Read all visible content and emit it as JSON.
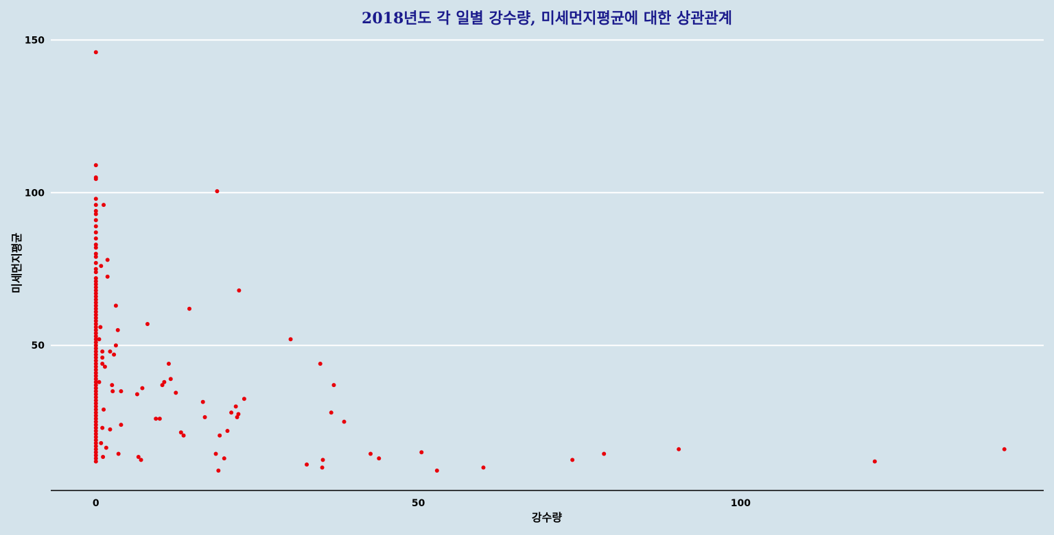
{
  "chart_data": {
    "type": "scatter",
    "title": "2018년도 각 일별 강수량, 미세먼지평균에 대한 상관관계",
    "xlabel": "강수량",
    "ylabel": "미세먼지평균",
    "xlim": [
      -7,
      147
    ],
    "ylim": [
      2.5,
      153
    ],
    "x_ticks": [
      "0",
      "50",
      "100"
    ],
    "y_ticks": [
      "50",
      "100",
      "150"
    ],
    "grid": "horizontal-major",
    "point_color": "#e8000b",
    "points": [
      [
        0,
        146
      ],
      [
        0,
        109
      ],
      [
        0,
        105
      ],
      [
        0,
        104.5
      ],
      [
        0,
        98
      ],
      [
        0,
        96
      ],
      [
        0,
        94
      ],
      [
        0,
        93
      ],
      [
        0,
        91
      ],
      [
        0,
        89
      ],
      [
        0,
        87
      ],
      [
        0,
        85
      ],
      [
        0,
        83
      ],
      [
        0,
        82
      ],
      [
        0,
        80
      ],
      [
        0,
        79
      ],
      [
        0,
        77
      ],
      [
        0,
        75
      ],
      [
        0,
        74
      ],
      [
        0,
        72
      ],
      [
        0,
        71
      ],
      [
        0,
        70
      ],
      [
        0,
        69
      ],
      [
        0,
        68
      ],
      [
        0,
        67
      ],
      [
        0,
        66
      ],
      [
        0,
        65
      ],
      [
        0,
        64
      ],
      [
        0,
        63
      ],
      [
        0,
        62
      ],
      [
        0,
        61
      ],
      [
        0,
        60
      ],
      [
        0,
        59
      ],
      [
        0,
        58
      ],
      [
        0,
        57
      ],
      [
        0,
        56
      ],
      [
        0,
        55
      ],
      [
        0,
        54
      ],
      [
        0,
        53
      ],
      [
        0,
        52
      ],
      [
        0,
        51
      ],
      [
        0,
        50
      ],
      [
        0,
        49
      ],
      [
        0,
        48
      ],
      [
        0,
        47
      ],
      [
        0,
        46
      ],
      [
        0,
        45
      ],
      [
        0,
        44
      ],
      [
        0,
        43
      ],
      [
        0,
        42
      ],
      [
        0,
        41
      ],
      [
        0,
        40
      ],
      [
        0,
        39
      ],
      [
        0,
        38
      ],
      [
        0,
        37
      ],
      [
        0,
        36
      ],
      [
        0,
        35
      ],
      [
        0,
        34
      ],
      [
        0,
        33
      ],
      [
        0,
        32
      ],
      [
        0,
        31
      ],
      [
        0,
        30
      ],
      [
        0,
        29
      ],
      [
        0,
        28
      ],
      [
        0,
        27
      ],
      [
        0,
        26
      ],
      [
        0,
        25
      ],
      [
        0,
        24
      ],
      [
        0,
        23
      ],
      [
        0,
        22
      ],
      [
        0,
        21
      ],
      [
        0,
        20
      ],
      [
        0,
        19
      ],
      [
        0,
        18
      ],
      [
        0,
        17
      ],
      [
        0,
        16
      ],
      [
        0,
        15
      ],
      [
        0,
        14
      ],
      [
        0,
        13
      ],
      [
        0,
        12
      ],
      [
        0.5,
        52
      ],
      [
        0.5,
        38
      ],
      [
        0.7,
        56
      ],
      [
        0.8,
        76
      ],
      [
        0.8,
        18
      ],
      [
        1,
        48
      ],
      [
        1,
        46
      ],
      [
        1,
        44
      ],
      [
        1,
        23
      ],
      [
        1.1,
        13.5
      ],
      [
        1.2,
        96
      ],
      [
        1.2,
        29
      ],
      [
        1.4,
        43
      ],
      [
        1.6,
        16.5
      ],
      [
        1.8,
        78
      ],
      [
        1.8,
        72.5
      ],
      [
        2.2,
        48
      ],
      [
        2.2,
        22.5
      ],
      [
        2.5,
        37
      ],
      [
        2.6,
        35
      ],
      [
        2.8,
        47
      ],
      [
        3.1,
        50
      ],
      [
        3.1,
        63
      ],
      [
        3.4,
        55
      ],
      [
        3.5,
        14.5
      ],
      [
        3.9,
        24
      ],
      [
        3.9,
        35
      ],
      [
        6.4,
        34
      ],
      [
        6.6,
        13.5
      ],
      [
        7,
        12.5
      ],
      [
        7.2,
        36
      ],
      [
        8,
        57
      ],
      [
        9.3,
        26
      ],
      [
        9.9,
        26
      ],
      [
        10.3,
        37
      ],
      [
        10.6,
        38
      ],
      [
        11.3,
        44
      ],
      [
        11.6,
        39
      ],
      [
        12.4,
        34.5
      ],
      [
        13.2,
        21.5
      ],
      [
        13.6,
        20.5
      ],
      [
        14.5,
        62
      ],
      [
        16.6,
        31.5
      ],
      [
        16.9,
        26.5
      ],
      [
        18.6,
        14.5
      ],
      [
        18.8,
        100.5
      ],
      [
        19,
        9
      ],
      [
        19.2,
        20.5
      ],
      [
        19.9,
        13
      ],
      [
        20.4,
        22
      ],
      [
        21,
        28
      ],
      [
        21.7,
        30
      ],
      [
        21.9,
        26.5
      ],
      [
        22.1,
        27.5
      ],
      [
        22.2,
        68
      ],
      [
        23,
        32.5
      ],
      [
        30.2,
        52
      ],
      [
        32.7,
        11
      ],
      [
        34.8,
        44
      ],
      [
        35.1,
        10
      ],
      [
        35.2,
        12.5
      ],
      [
        36.5,
        28
      ],
      [
        36.9,
        37
      ],
      [
        38.5,
        25
      ],
      [
        42.6,
        14.5
      ],
      [
        43.9,
        13
      ],
      [
        50.5,
        15
      ],
      [
        52.9,
        9
      ],
      [
        60.1,
        10
      ],
      [
        73.9,
        12.5
      ],
      [
        78.8,
        14.5
      ],
      [
        90.4,
        16
      ],
      [
        120.8,
        12
      ],
      [
        140.9,
        16
      ]
    ]
  }
}
